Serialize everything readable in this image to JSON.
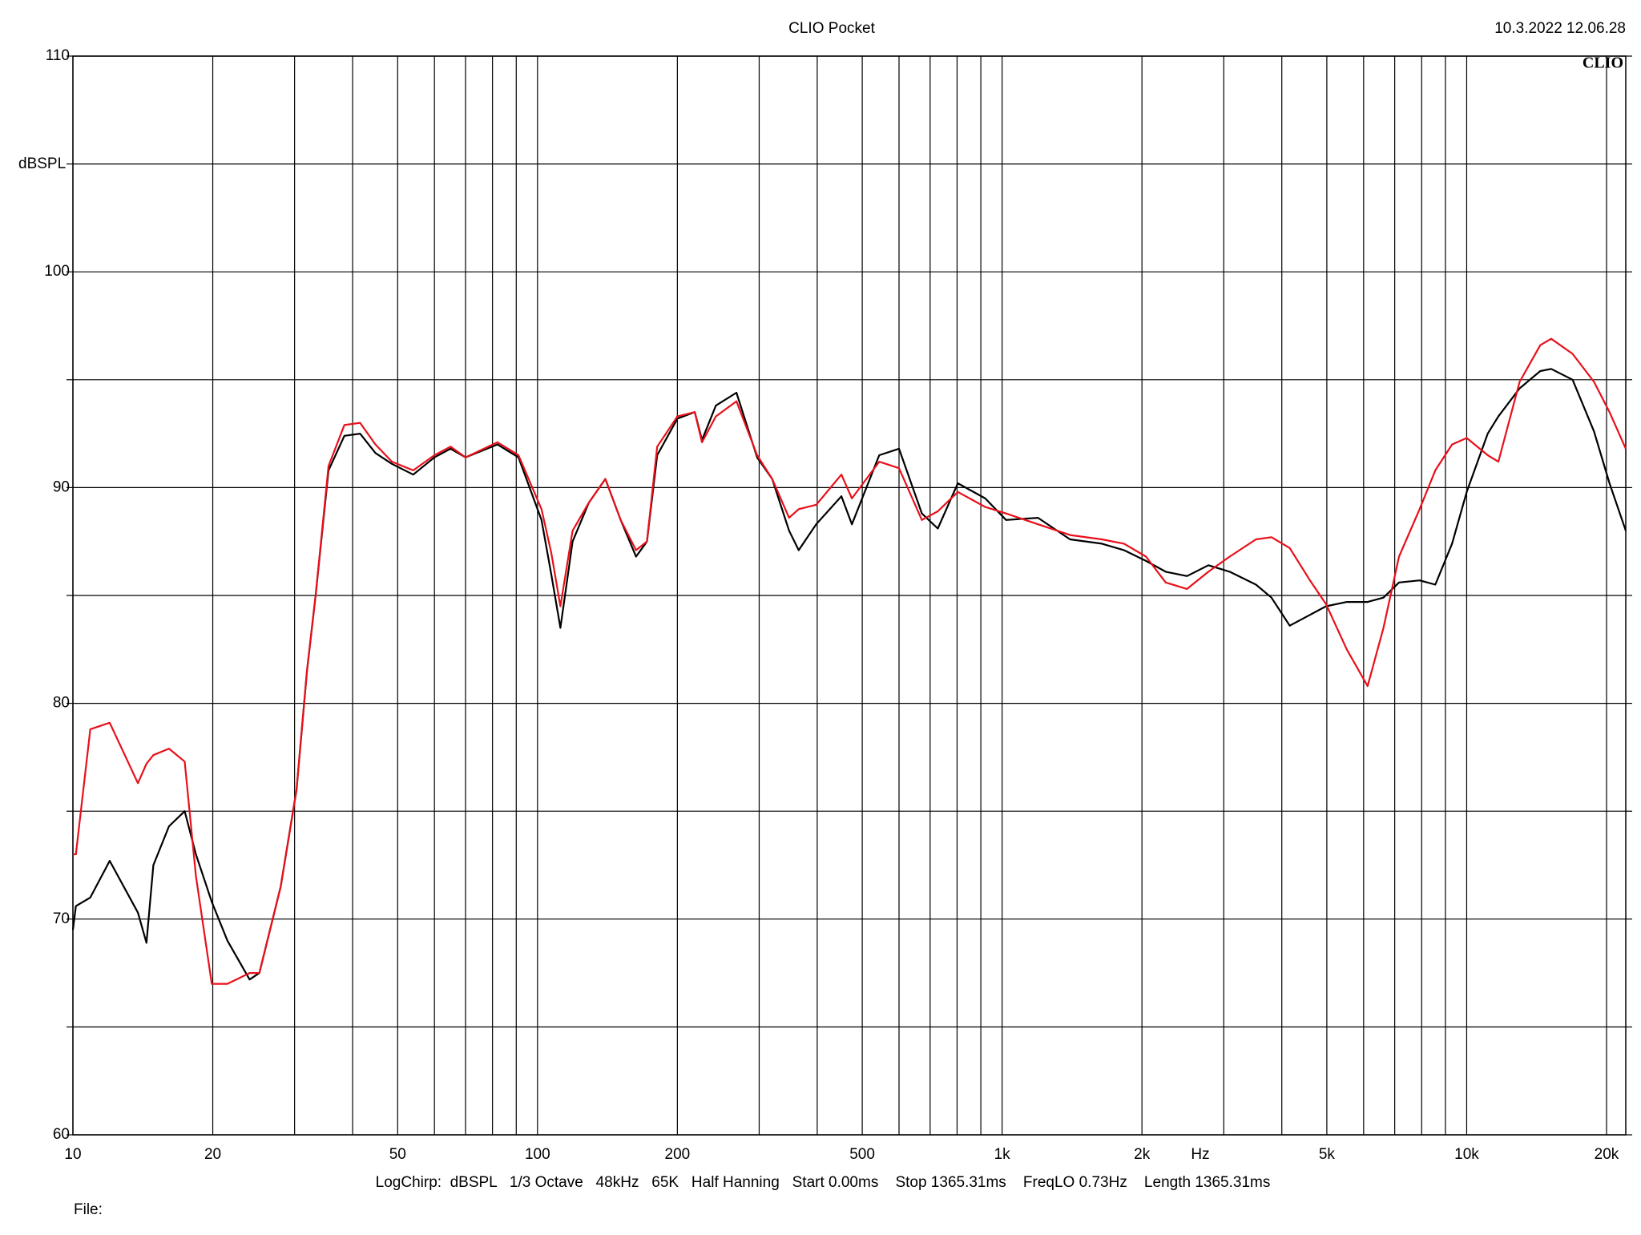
{
  "chart_data": {
    "type": "line",
    "title": "CLIO Pocket",
    "timestamp": "10.3.2022 12.06.28",
    "logo": "CLIO",
    "ylabel": "dBSPL",
    "xlabel": "Hz",
    "footer": "LogChirp:  dBSPL   1/3 Octave   48kHz   65K   Half Hanning   Start 0.00ms    Stop 1365.31ms    FreqLO 0.73Hz    Length 1365.31ms",
    "file_label": "File:",
    "xscale": "log",
    "grid": true,
    "xlim": [
      10,
      22000
    ],
    "ylim": [
      60,
      110
    ],
    "xticks": [
      10,
      20,
      50,
      100,
      200,
      500,
      {
        "value": 1000,
        "label": "1k"
      },
      {
        "value": 2000,
        "label": "2k"
      },
      {
        "value": 5000,
        "label": "5k"
      },
      {
        "value": 10000,
        "label": "10k"
      },
      {
        "value": 20000,
        "label": "20k"
      }
    ],
    "xminor": [
      30,
      40,
      60,
      70,
      80,
      90,
      300,
      400,
      600,
      700,
      800,
      900,
      3000,
      4000,
      6000,
      7000,
      8000,
      9000
    ],
    "yticks": [
      60,
      70,
      80,
      90,
      100,
      110
    ],
    "yminor": [
      65,
      75,
      85,
      95,
      105
    ],
    "x": [
      10,
      10.15,
      10.9,
      12,
      13.8,
      14.4,
      14.9,
      16.1,
      17.4,
      18.4,
      19.9,
      21.5,
      24,
      25.2,
      28,
      30.3,
      31.9,
      33.3,
      35.5,
      38.4,
      41.5,
      44.8,
      48.6,
      54,
      60,
      65,
      70,
      82,
      91,
      102,
      107,
      112,
      119,
      129,
      140,
      151,
      163,
      172,
      181,
      200,
      218,
      226,
      242,
      268,
      297,
      320,
      348,
      365,
      398,
      451,
      475,
      544,
      600,
      672,
      727,
      803,
      920,
      1020,
      1195,
      1400,
      1640,
      1830,
      2040,
      2250,
      2500,
      2780,
      3090,
      3520,
      3800,
      4160,
      4600,
      4980,
      5520,
      6120,
      6620,
      7150,
      7920,
      8560,
      9300,
      10000,
      11100,
      11700,
      13000,
      14400,
      15200,
      16900,
      18800,
      20300,
      22000
    ],
    "series": [
      {
        "color": "#000000",
        "values": [
          69.5,
          70.6,
          71,
          72.7,
          70.3,
          68.9,
          72.5,
          74.3,
          75,
          73,
          70.8,
          69,
          67.2,
          67.5,
          71.5,
          76,
          81.5,
          85,
          90.8,
          92.4,
          92.5,
          91.6,
          91.1,
          90.6,
          91.4,
          91.8,
          91.4,
          92,
          91.4,
          88.5,
          86,
          83.5,
          87.5,
          89.3,
          90.4,
          88.5,
          86.8,
          87.5,
          91.5,
          93.2,
          93.5,
          92.2,
          93.8,
          94.4,
          91.4,
          90.4,
          88,
          87.1,
          88.3,
          89.6,
          88.3,
          91.5,
          91.8,
          88.8,
          88.1,
          90.2,
          89.5,
          88.5,
          88.6,
          87.6,
          87.4,
          87.1,
          86.6,
          86.1,
          85.9,
          86.4,
          86.1,
          85.5,
          84.9,
          83.6,
          84.1,
          84.5,
          84.7,
          84.7,
          84.9,
          85.6,
          85.7,
          85.5,
          87.4,
          89.8,
          92.5,
          93.3,
          94.6,
          95.4,
          95.5,
          95,
          92.6,
          90.2,
          88
        ]
      },
      {
        "color": "#e8101a",
        "values": [
          73,
          73,
          78.8,
          79.1,
          76.3,
          77.2,
          77.6,
          77.9,
          77.3,
          72,
          67,
          67,
          67.5,
          67.5,
          71.5,
          76,
          81.5,
          85,
          91,
          92.9,
          93,
          92,
          91.2,
          90.8,
          91.5,
          91.9,
          91.4,
          92.1,
          91.5,
          89,
          87,
          84.5,
          88,
          89.3,
          90.4,
          88.5,
          87.1,
          87.5,
          91.9,
          93.3,
          93.5,
          92.1,
          93.3,
          94,
          91.5,
          90.4,
          88.6,
          89,
          89.2,
          90.6,
          89.5,
          91.2,
          90.9,
          88.5,
          88.9,
          89.8,
          89.1,
          88.8,
          88.3,
          87.8,
          87.6,
          87.4,
          86.8,
          85.6,
          85.3,
          86.1,
          86.8,
          87.6,
          87.7,
          87.2,
          85.7,
          84.6,
          82.5,
          80.8,
          83.5,
          86.8,
          89,
          90.8,
          92,
          92.3,
          91.5,
          91.2,
          94.9,
          96.6,
          96.9,
          96.2,
          94.9,
          93.5,
          91.8
        ]
      }
    ]
  }
}
